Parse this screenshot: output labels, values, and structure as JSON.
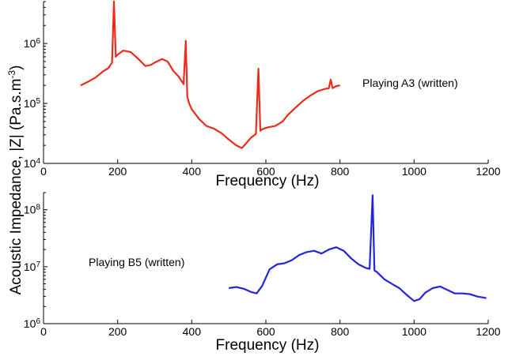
{
  "y_axis_label": "Acoustic Impedance, |Z| (Pa.s.m",
  "y_axis_label_sup": "-3",
  "y_axis_label_end": ")",
  "chart_data": [
    {
      "type": "line",
      "xlabel": "Frequency (Hz)",
      "xlim": [
        0,
        1200
      ],
      "xticks": [
        0,
        200,
        400,
        600,
        800,
        1000,
        1200
      ],
      "yscale": "log",
      "ylim": [
        10000,
        5000000
      ],
      "yticks": [
        {
          "value": 10000,
          "base": "10",
          "exp": "4"
        },
        {
          "value": 100000,
          "base": "10",
          "exp": "5"
        },
        {
          "value": 1000000,
          "base": "10",
          "exp": "6"
        }
      ],
      "annotation": "Playing A3 (written)",
      "grid": false,
      "series": [
        {
          "color": "#ee2a1b",
          "x": [
            100,
            120,
            140,
            160,
            175,
            185,
            190,
            195,
            200,
            215,
            235,
            255,
            275,
            290,
            300,
            320,
            335,
            350,
            365,
            378,
            384,
            388,
            393,
            400,
            420,
            440,
            460,
            480,
            500,
            520,
            535,
            548,
            560,
            573,
            580,
            585,
            590,
            605,
            625,
            645,
            660,
            680,
            700,
            720,
            740,
            760,
            770,
            775,
            780,
            790,
            800
          ],
          "y": [
            200000,
            230000,
            270000,
            340000,
            390000,
            480000,
            5000000,
            600000,
            650000,
            760000,
            720000,
            560000,
            420000,
            440000,
            480000,
            550000,
            500000,
            350000,
            280000,
            210000,
            1100000,
            130000,
            100000,
            80000,
            55000,
            42000,
            38000,
            32000,
            25000,
            20000,
            18000,
            22000,
            27000,
            31000,
            380000,
            35000,
            37000,
            40000,
            42000,
            50000,
            65000,
            85000,
            110000,
            135000,
            160000,
            175000,
            180000,
            250000,
            180000,
            195000,
            200000
          ]
        }
      ]
    },
    {
      "type": "line",
      "xlabel": "Frequency (Hz)",
      "xlim": [
        0,
        1200
      ],
      "xticks": [
        0,
        200,
        400,
        600,
        800,
        1000,
        1200
      ],
      "yscale": "log",
      "ylim": [
        1000000,
        200000000
      ],
      "yticks": [
        {
          "value": 1000000,
          "base": "10",
          "exp": "6"
        },
        {
          "value": 10000000,
          "base": "10",
          "exp": "7"
        },
        {
          "value": 100000000,
          "base": "10",
          "exp": "8"
        }
      ],
      "annotation": "Playing B5 (written)",
      "grid": false,
      "series": [
        {
          "color": "#2424e0",
          "x": [
            500,
            520,
            540,
            560,
            575,
            590,
            610,
            630,
            650,
            670,
            690,
            710,
            730,
            750,
            770,
            790,
            810,
            830,
            850,
            870,
            880,
            888,
            893,
            900,
            920,
            940,
            960,
            980,
            1000,
            1015,
            1030,
            1050,
            1070,
            1090,
            1110,
            1130,
            1150,
            1170,
            1195
          ],
          "y": [
            4200000,
            4400000,
            4100000,
            3600000,
            3400000,
            4600000,
            9000000,
            11000000,
            11500000,
            13000000,
            16000000,
            18000000,
            19000000,
            17000000,
            20000000,
            22000000,
            19000000,
            14000000,
            11000000,
            9500000,
            9200000,
            180000000,
            8600000,
            8000000,
            6000000,
            5000000,
            4200000,
            3200000,
            2500000,
            2700000,
            3500000,
            4200000,
            4500000,
            3900000,
            3400000,
            3400000,
            3300000,
            3000000,
            2800000
          ]
        }
      ]
    }
  ]
}
